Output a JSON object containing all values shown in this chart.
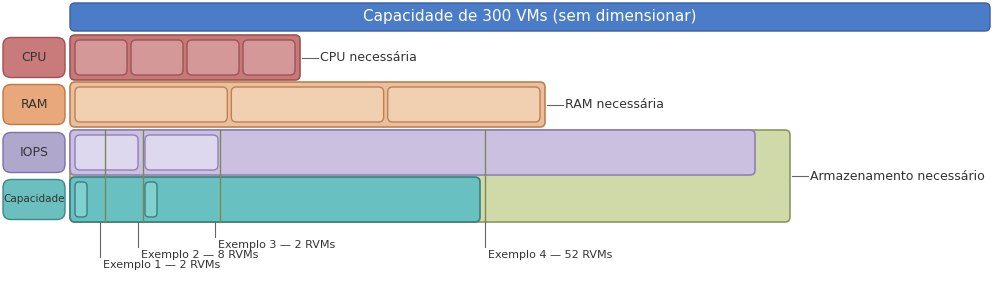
{
  "title": "Capacidade de 300 VMs (sem dimensionar)",
  "title_color": "#ffffff",
  "title_bg": "#4a7cc7",
  "title_border": "#3a5fa0",
  "bg_color": "#ffffff",
  "row_labels": [
    "CPU",
    "RAM",
    "IOPS",
    "Capacidade"
  ],
  "row_label_colors": [
    "#c97b7b",
    "#e8a87c",
    "#b0a8cc",
    "#6bbfbf"
  ],
  "row_label_border_colors": [
    "#a05050",
    "#c07840",
    "#8070a8",
    "#3a8a8a"
  ],
  "cpu_color": "#c97878",
  "cpu_border": "#9a5555",
  "cpu_block_color": "#d49898",
  "cpu_block_border": "#9a5555",
  "ram_color": "#e8c0a0",
  "ram_border": "#c08050",
  "ram_block_color": "#f0d0b0",
  "ram_block_border": "#c08050",
  "storage_outer_color": "#d0daa8",
  "storage_outer_border": "#8a9860",
  "iops_color": "#ccc0e0",
  "iops_border": "#9080b8",
  "iops_block_color": "#ddd8ee",
  "iops_block_border": "#9080b8",
  "cap_color": "#68c0c0",
  "cap_border": "#3a8080",
  "cap_block_color": "#80d0d0",
  "cap_block_border": "#3a8080",
  "annotations_right": [
    {
      "text": "CPU necessária"
    },
    {
      "text": "RAM necessária"
    },
    {
      "text": "Armazenamento necessário"
    }
  ],
  "annotations_bottom": [
    {
      "text": "Exemplo 1 — 2 RVMs"
    },
    {
      "text": "Exemplo 2 — 8 RVMs"
    },
    {
      "text": "Exemplo 3 — 2 RVMs"
    },
    {
      "text": "Exemplo 4 — 52 RVMs"
    }
  ]
}
